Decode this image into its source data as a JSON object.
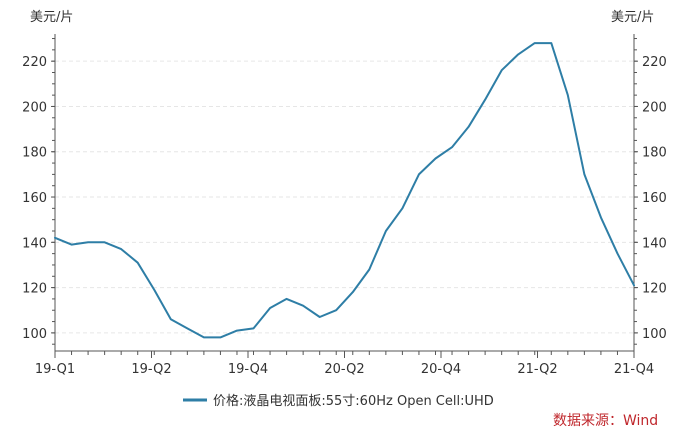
{
  "chart_data": {
    "type": "line",
    "y_unit_left": "美元/片",
    "y_unit_right": "美元/片",
    "ylim": [
      92,
      232
    ],
    "y_ticks": [
      100,
      120,
      140,
      160,
      180,
      200,
      220
    ],
    "y_tick_labels": [
      "100",
      "120",
      "140",
      "160",
      "180",
      "200",
      "220"
    ],
    "x_tick_labels": [
      "19-Q1",
      "19-Q2",
      "19-Q4",
      "20-Q2",
      "20-Q4",
      "21-Q2",
      "21-Q4"
    ],
    "grid": true,
    "legend_position": "bottom",
    "series": [
      {
        "name": "价格:液晶电视面板:55寸:60Hz Open Cell:UHD",
        "color": "#2e7ea6",
        "values": [
          142,
          139,
          140,
          140,
          137,
          131,
          119,
          106,
          102,
          98,
          98,
          101,
          102,
          111,
          115,
          112,
          107,
          110,
          118,
          128,
          145,
          155,
          170,
          177,
          182,
          191,
          203,
          216,
          223,
          228,
          228,
          205,
          170,
          151,
          135,
          121
        ]
      }
    ]
  },
  "source_note": "数据来源：Wind",
  "colors": {
    "line": "#2e7ea6",
    "source": "#c0282d",
    "grid": "#e6e6e6",
    "axis": "#555555"
  }
}
